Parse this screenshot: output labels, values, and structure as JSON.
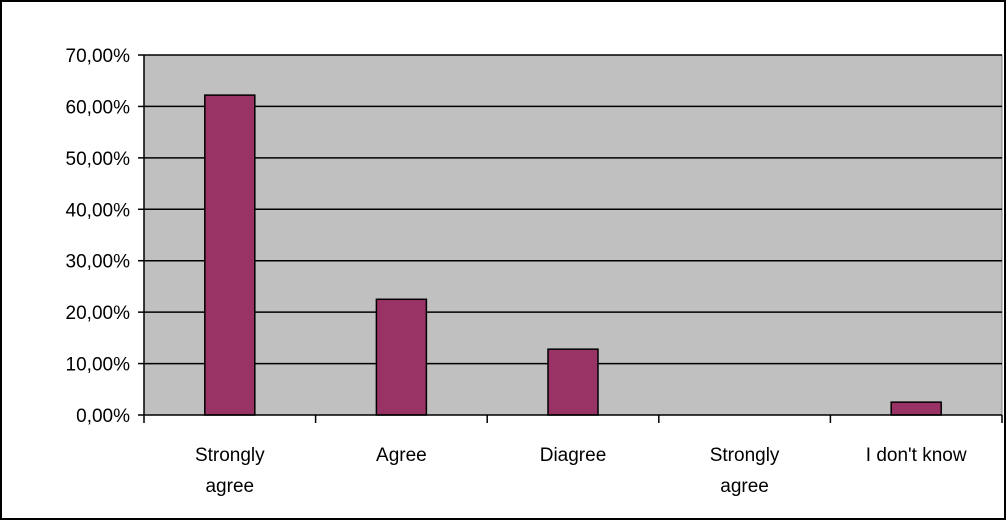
{
  "chart_data": {
    "type": "bar",
    "categories": [
      [
        "Strongly",
        "agree"
      ],
      [
        "Agree"
      ],
      [
        "Diagree"
      ],
      [
        "Strongly",
        "agree"
      ],
      [
        "I don't know"
      ]
    ],
    "values": [
      62.2,
      22.5,
      12.8,
      0,
      2.5
    ],
    "y_ticks": [
      "0,00%",
      "10,00%",
      "20,00%",
      "30,00%",
      "40,00%",
      "50,00%",
      "60,00%",
      "70,00%"
    ],
    "ylim": [
      0,
      70
    ],
    "grid": true,
    "legend": "none",
    "colors": {
      "plot_background": "#c0c0c0",
      "bar_fill": "#993366",
      "bar_stroke": "#000000",
      "gridline": "#000000"
    }
  }
}
